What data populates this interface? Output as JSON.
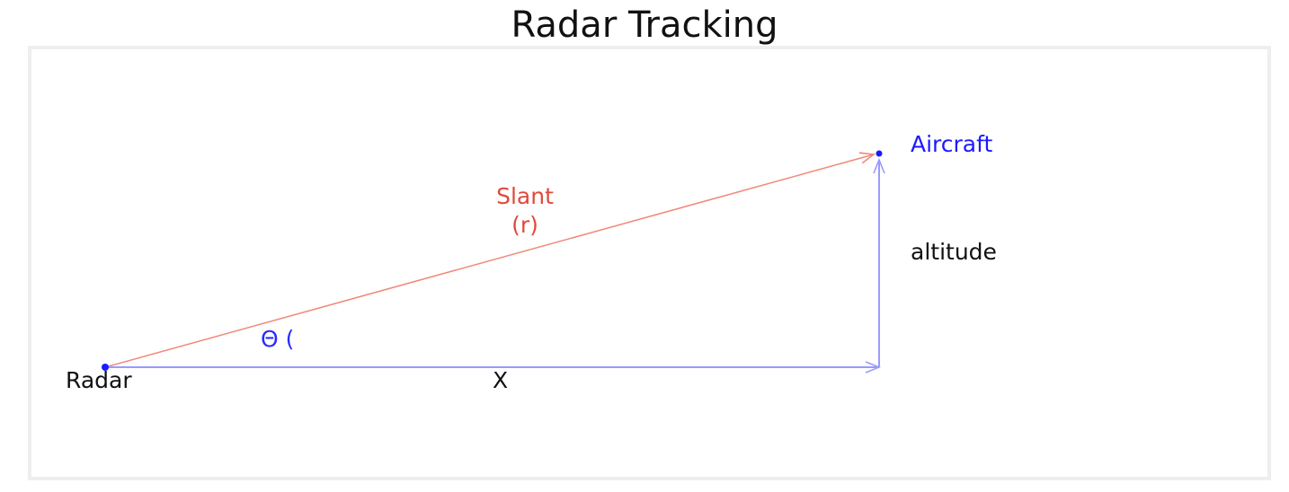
{
  "title": "Radar Tracking",
  "labels": {
    "radar": "Radar",
    "aircraft": "Aircraft",
    "slant_line1": "Slant",
    "slant_line2": "(r)",
    "altitude": "altitude",
    "x": "X",
    "theta": "Θ ("
  },
  "colors": {
    "slant": "#e04a3c",
    "slant_line": "#f08878",
    "aircraft": "#1a1aff",
    "theta": "#2a2aff",
    "baseline": "#9a9aff",
    "text": "#111111",
    "frame": "#eeeeee"
  }
}
